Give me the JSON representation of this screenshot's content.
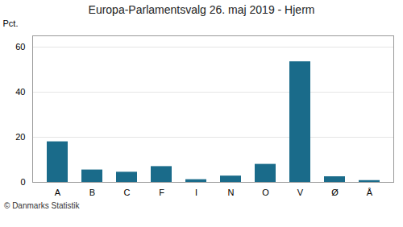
{
  "chart_data": {
    "type": "bar",
    "title": "Europa-Parlamentsvalg 26. maj 2019 - Hjerm",
    "categories": [
      "A",
      "B",
      "C",
      "F",
      "I",
      "N",
      "O",
      "V",
      "Ø",
      "Å"
    ],
    "values": [
      18.0,
      5.5,
      4.5,
      7.0,
      1.2,
      2.8,
      8.0,
      53.5,
      2.5,
      0.8
    ],
    "color": "#1a6b8a",
    "ylabel": "Pct.",
    "ylim": [
      0,
      65
    ],
    "yticks": [
      0,
      20,
      40,
      60
    ],
    "grid": true,
    "annotations": [
      "© Danmarks Statistik"
    ]
  }
}
